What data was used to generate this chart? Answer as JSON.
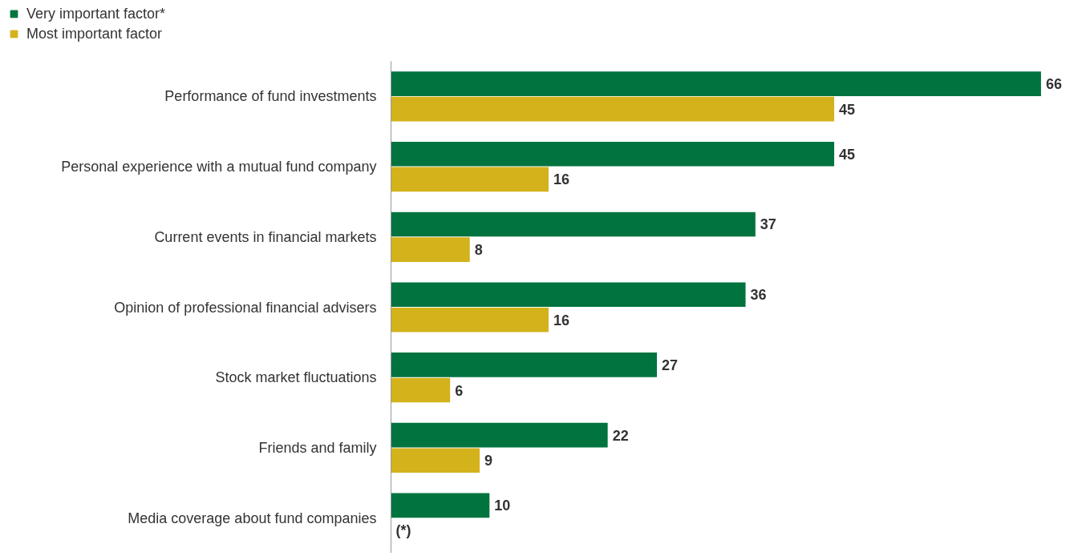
{
  "chart_data": {
    "type": "bar",
    "orientation": "horizontal",
    "legend": "top left",
    "categories": [
      "Performance of fund investments",
      "Personal experience with a mutual fund company",
      "Current events in financial markets",
      "Opinion of professional financial advisers",
      "Stock market fluctuations",
      "Friends and family",
      "Media coverage about fund companies"
    ],
    "series": [
      {
        "name": "Very important factor*",
        "color": "#00733f",
        "values": [
          66,
          45,
          37,
          36,
          27,
          22,
          10
        ],
        "value_labels": [
          "66",
          "45",
          "37",
          "36",
          "27",
          "22",
          "10"
        ]
      },
      {
        "name": "Most important factor",
        "color": "#d4b21b",
        "values": [
          45,
          16,
          8,
          16,
          6,
          9,
          null
        ],
        "value_labels": [
          "45",
          "16",
          "8",
          "16",
          "6",
          "9",
          "(*)"
        ]
      }
    ]
  }
}
